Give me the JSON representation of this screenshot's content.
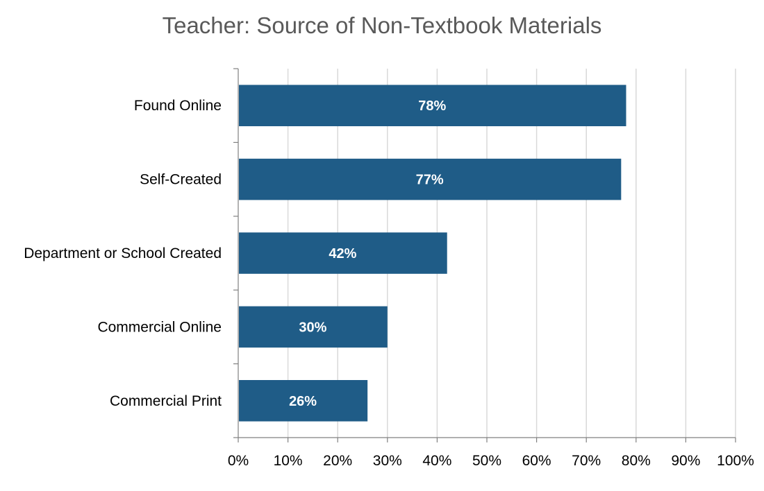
{
  "chart_data": {
    "type": "bar",
    "orientation": "horizontal",
    "title": "Teacher: Source of Non-Textbook Materials",
    "categories": [
      "Found Online",
      "Self-Created",
      "Department or School Created",
      "Commercial Online",
      "Commercial Print"
    ],
    "values": [
      78,
      77,
      42,
      30,
      26
    ],
    "data_labels": [
      "78%",
      "77%",
      "42%",
      "30%",
      "26%"
    ],
    "xlim": [
      0,
      100
    ],
    "x_ticks": [
      "0%",
      "10%",
      "20%",
      "30%",
      "40%",
      "50%",
      "60%",
      "70%",
      "80%",
      "90%",
      "100%"
    ],
    "xlabel": "",
    "ylabel": "",
    "grid": "vertical",
    "legend": "none",
    "colors": {
      "bar": "#1F5C87",
      "grid": "#D9D9D9",
      "axis": "#808080",
      "title": "#595959"
    }
  }
}
